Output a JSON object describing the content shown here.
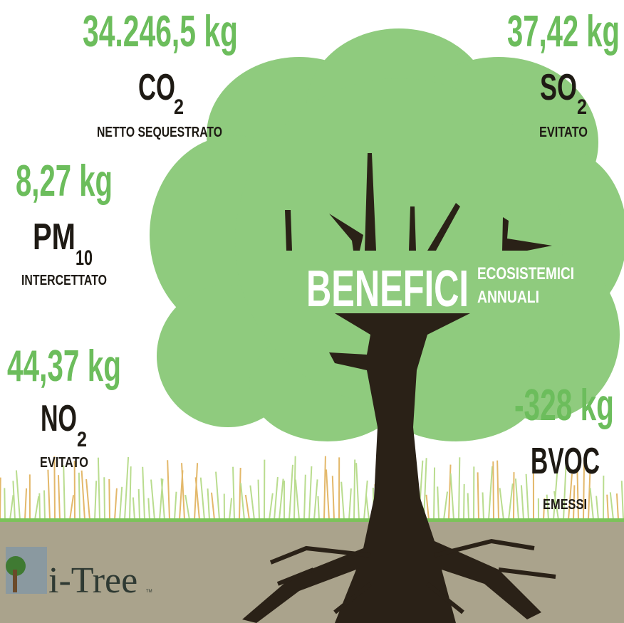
{
  "benefits": [
    {
      "value": "34.246,5 kg",
      "pollutant": "CO",
      "subscript": "2",
      "label": "NETTO SEQUESTRATO"
    },
    {
      "value": "37,42 kg",
      "pollutant": "SO",
      "subscript": "2",
      "label": "EVITATO"
    },
    {
      "value": "8,27 kg",
      "pollutant": "PM",
      "subscript": "10",
      "label": "INTERCETTATO"
    },
    {
      "value": "44,37 kg",
      "pollutant": "NO",
      "subscript": "2",
      "label": "EVITATO"
    },
    {
      "value": "-328 kg",
      "pollutant": "BVOC",
      "label": "EMESSI"
    }
  ],
  "headline": {
    "title": "BENEFICI",
    "subtitle_line1": "ECOSISTEMICI",
    "subtitle_line2": "ANNUALI"
  },
  "logo": {
    "text": "i-Tree",
    "trademark": "TM"
  }
}
